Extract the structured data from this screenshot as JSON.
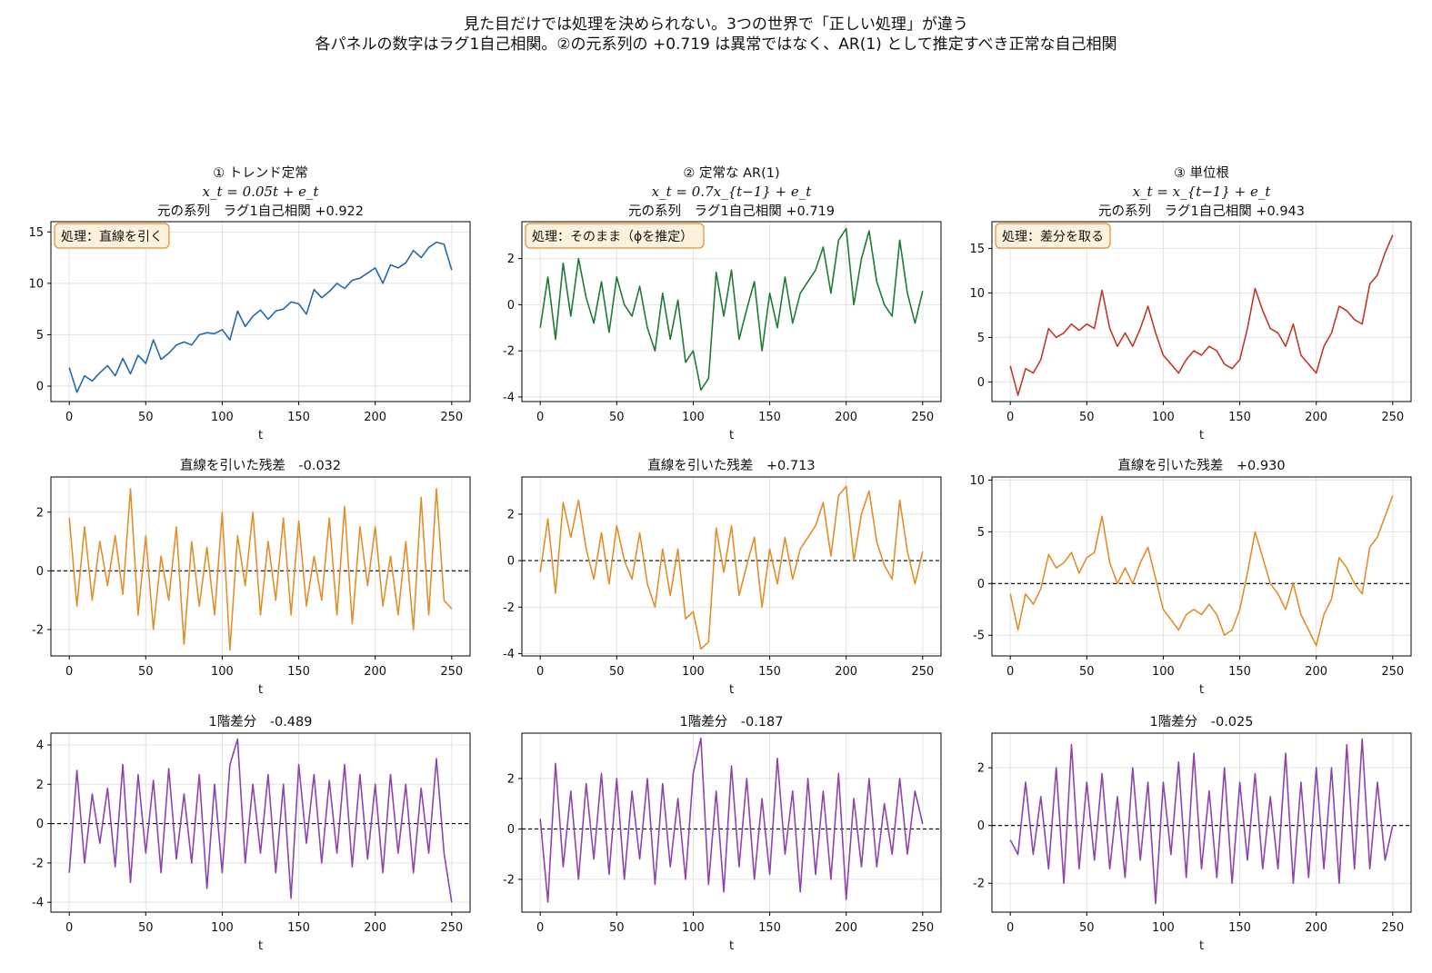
{
  "suptitle": {
    "line1": "見た目だけでは処理を決められない。3つの世界で「正しい処理」が違う",
    "line2": "各パネルの数字はラグ1自己相関。②の元系列の +0.719 は異常ではなく、AR(1) として推定すべき正常な自己相関"
  },
  "colors": {
    "trend": "#2369a8",
    "ar1": "#1e7b35",
    "unitroot": "#c0392b",
    "residual": "#e08f2c",
    "diff": "#8e44ad",
    "box_fill": "#fdf0dc",
    "box_edge": "#e08f2c",
    "grid": "#e3e3e3"
  },
  "chart_data": [
    {
      "type": "line",
      "panel": "row1-col1",
      "title_lines": [
        "① トレンド定常",
        "x_t = 0.05t + e_t",
        "元の系列　ラグ1自己相関 +0.922"
      ],
      "box": "処理：直線を引く",
      "xlabel": "t",
      "xlim": [
        -12,
        262
      ],
      "ylim": [
        -1.5,
        16
      ],
      "xticks": [
        0,
        50,
        100,
        150,
        200,
        250
      ],
      "yticks": [
        0,
        5,
        10,
        15
      ],
      "color_key": "trend",
      "zero_line": false,
      "x_start": 0,
      "x_step": 5,
      "values": [
        1.8,
        -0.6,
        1.0,
        0.5,
        1.3,
        2.0,
        1.0,
        2.7,
        1.2,
        3.0,
        2.2,
        4.5,
        2.6,
        3.2,
        4.0,
        4.3,
        4.0,
        5.0,
        5.2,
        5.1,
        5.5,
        4.5,
        7.3,
        5.8,
        6.8,
        7.4,
        6.5,
        7.3,
        7.5,
        8.2,
        8.0,
        7.0,
        9.4,
        8.6,
        9.2,
        10.0,
        9.5,
        10.3,
        10.5,
        11.0,
        11.5,
        10.0,
        11.8,
        11.5,
        12.0,
        13.2,
        12.5,
        13.5,
        14.0,
        13.8,
        11.3
      ]
    },
    {
      "type": "line",
      "panel": "row1-col2",
      "title_lines": [
        "② 定常な AR(1)",
        "x_t = 0.7x_{t−1} + e_t",
        "元の系列　ラグ1自己相関 +0.719"
      ],
      "box": "処理：そのまま（ϕを推定）",
      "xlabel": "t",
      "xlim": [
        -12,
        262
      ],
      "ylim": [
        -4.2,
        3.6
      ],
      "xticks": [
        0,
        50,
        100,
        150,
        200,
        250
      ],
      "yticks": [
        -4,
        -2,
        0,
        2
      ],
      "color_key": "ar1",
      "zero_line": false,
      "x_start": 0,
      "x_step": 5,
      "values": [
        -1.0,
        1.2,
        -1.5,
        1.8,
        -0.5,
        2.0,
        0.3,
        -0.8,
        1.0,
        -1.2,
        1.2,
        0.0,
        -0.5,
        0.8,
        -1.0,
        -2.0,
        0.5,
        -1.5,
        0.2,
        -2.5,
        -2.0,
        -3.7,
        -3.2,
        1.4,
        -0.5,
        1.5,
        -1.5,
        -0.2,
        1.0,
        -2.0,
        0.5,
        -1.0,
        1.2,
        -0.8,
        0.5,
        1.0,
        1.5,
        2.5,
        0.5,
        2.8,
        3.3,
        0.0,
        2.0,
        3.2,
        1.0,
        0.0,
        -0.5,
        2.8,
        0.5,
        -0.8,
        0.6
      ]
    },
    {
      "type": "line",
      "panel": "row1-col3",
      "title_lines": [
        "③ 単位根",
        "x_t = x_{t−1} + e_t",
        "元の系列　ラグ1自己相関 +0.943"
      ],
      "box": "処理：差分を取る",
      "xlabel": "t",
      "xlim": [
        -12,
        262
      ],
      "ylim": [
        -2.2,
        18
      ],
      "xticks": [
        0,
        50,
        100,
        150,
        200,
        250
      ],
      "yticks": [
        0,
        5,
        10,
        15
      ],
      "color_key": "unitroot",
      "zero_line": false,
      "x_start": 0,
      "x_step": 5,
      "values": [
        1.8,
        -1.5,
        1.5,
        1.0,
        2.5,
        6.0,
        5.0,
        5.5,
        6.5,
        5.8,
        6.5,
        6.0,
        10.3,
        6.0,
        4.0,
        5.5,
        4.0,
        6.0,
        8.5,
        5.5,
        3.0,
        2.0,
        1.0,
        2.5,
        3.5,
        3.0,
        4.0,
        3.5,
        2.0,
        1.5,
        2.5,
        6.0,
        10.5,
        8.0,
        6.0,
        5.5,
        4.0,
        6.5,
        3.0,
        2.0,
        1.0,
        4.0,
        5.5,
        8.5,
        8.0,
        7.0,
        6.5,
        11.0,
        12.0,
        14.5,
        16.5
      ]
    },
    {
      "type": "line",
      "panel": "row2-col1",
      "title": "直線を引いた残差　-0.032",
      "xlabel": "t",
      "xlim": [
        -12,
        262
      ],
      "ylim": [
        -2.9,
        3.2
      ],
      "xticks": [
        0,
        50,
        100,
        150,
        200,
        250
      ],
      "yticks": [
        -2,
        0,
        2
      ],
      "color_key": "residual",
      "zero_line": true,
      "x_start": 0,
      "x_step": 5,
      "values": [
        1.8,
        -1.2,
        1.5,
        -1.0,
        1.0,
        -0.5,
        1.2,
        -0.8,
        2.8,
        -1.5,
        1.2,
        -2.0,
        0.5,
        -1.0,
        1.5,
        -2.5,
        1.0,
        -1.2,
        0.8,
        -1.5,
        2.0,
        -2.7,
        1.2,
        -0.5,
        2.0,
        -1.5,
        1.0,
        -1.0,
        1.8,
        -1.5,
        1.7,
        -1.2,
        0.5,
        -1.0,
        1.8,
        -1.5,
        2.2,
        -1.8,
        1.5,
        -0.5,
        1.5,
        -1.2,
        0.5,
        -1.5,
        1.0,
        -2.0,
        2.5,
        -1.5,
        2.8,
        -1.0,
        -1.3
      ]
    },
    {
      "type": "line",
      "panel": "row2-col2",
      "title": "直線を引いた残差　+0.713",
      "xlabel": "t",
      "xlim": [
        -12,
        262
      ],
      "ylim": [
        -4.1,
        3.6
      ],
      "xticks": [
        0,
        50,
        100,
        150,
        200,
        250
      ],
      "yticks": [
        -4,
        -2,
        0,
        2
      ],
      "color_key": "residual",
      "zero_line": true,
      "x_start": 0,
      "x_step": 5,
      "values": [
        -0.5,
        1.8,
        -1.4,
        2.5,
        1.0,
        2.6,
        0.5,
        -0.8,
        1.2,
        -1.0,
        1.5,
        0.0,
        -0.8,
        1.2,
        -1.0,
        -2.0,
        0.5,
        -1.5,
        0.5,
        -2.5,
        -2.2,
        -3.8,
        -3.5,
        1.4,
        -0.5,
        1.5,
        -1.5,
        -0.2,
        1.0,
        -2.0,
        0.5,
        -1.0,
        1.0,
        -0.8,
        0.5,
        1.0,
        1.5,
        2.5,
        0.2,
        2.8,
        3.2,
        0.0,
        2.0,
        3.0,
        0.8,
        -0.2,
        -0.8,
        2.6,
        0.4,
        -1.0,
        0.4
      ]
    },
    {
      "type": "line",
      "panel": "row2-col3",
      "title": "直線を引いた残差　+0.930",
      "xlabel": "t",
      "xlim": [
        -12,
        262
      ],
      "ylim": [
        -7.0,
        10.3
      ],
      "xticks": [
        0,
        50,
        100,
        150,
        200,
        250
      ],
      "yticks": [
        -5,
        0,
        5,
        10
      ],
      "color_key": "residual",
      "zero_line": true,
      "x_start": 0,
      "x_step": 5,
      "values": [
        -1.0,
        -4.5,
        -1.0,
        -2.0,
        -0.5,
        2.8,
        1.5,
        2.0,
        3.0,
        1.0,
        2.5,
        3.0,
        6.5,
        2.0,
        0.0,
        1.5,
        0.0,
        2.0,
        3.5,
        0.5,
        -2.5,
        -3.5,
        -4.5,
        -3.0,
        -2.5,
        -3.0,
        -2.0,
        -3.0,
        -5.0,
        -4.5,
        -2.5,
        1.0,
        5.0,
        2.5,
        0.0,
        -1.0,
        -2.5,
        0.0,
        -3.0,
        -4.5,
        -6.0,
        -3.0,
        -1.5,
        2.5,
        1.5,
        0.0,
        -1.0,
        3.5,
        4.5,
        6.5,
        8.5
      ]
    },
    {
      "type": "line",
      "panel": "row3-col1",
      "title": "1階差分　-0.489",
      "xlabel": "t",
      "xlim": [
        -12,
        262
      ],
      "ylim": [
        -4.5,
        4.6
      ],
      "xticks": [
        0,
        50,
        100,
        150,
        200,
        250
      ],
      "yticks": [
        -4,
        -2,
        0,
        2,
        4
      ],
      "color_key": "diff",
      "zero_line": true,
      "x_start": 0,
      "x_step": 5,
      "values": [
        -2.5,
        2.7,
        -2.0,
        1.5,
        -1.0,
        1.8,
        -2.2,
        3.0,
        -3.0,
        2.5,
        -1.5,
        2.2,
        -2.5,
        2.8,
        -1.8,
        1.5,
        -2.0,
        2.5,
        -3.3,
        2.0,
        -2.5,
        3.0,
        4.3,
        -2.0,
        2.0,
        -1.5,
        2.5,
        -2.5,
        2.0,
        -3.8,
        3.0,
        -1.0,
        2.5,
        -2.0,
        2.2,
        -1.5,
        3.0,
        -2.2,
        2.5,
        -1.8,
        2.0,
        -2.5,
        2.5,
        -1.5,
        2.0,
        -2.5,
        1.8,
        -1.5,
        3.3,
        -1.5,
        -4.0
      ]
    },
    {
      "type": "line",
      "panel": "row3-col2",
      "title": "1階差分　-0.187",
      "xlabel": "t",
      "xlim": [
        -12,
        262
      ],
      "ylim": [
        -3.3,
        3.8
      ],
      "xticks": [
        0,
        50,
        100,
        150,
        200,
        250
      ],
      "yticks": [
        -2,
        0,
        2
      ],
      "color_key": "diff",
      "zero_line": true,
      "x_start": 0,
      "x_step": 5,
      "values": [
        0.4,
        -2.9,
        2.6,
        -1.5,
        1.5,
        -2.0,
        1.8,
        -1.2,
        2.2,
        -1.8,
        2.0,
        -2.0,
        1.5,
        -1.2,
        2.0,
        -2.2,
        1.8,
        -1.5,
        1.2,
        -2.0,
        2.2,
        3.6,
        -2.2,
        1.5,
        -2.5,
        2.5,
        -1.5,
        2.0,
        -2.0,
        1.2,
        -1.8,
        2.8,
        -1.0,
        1.5,
        -2.5,
        2.0,
        -1.8,
        1.5,
        -2.0,
        2.2,
        -2.8,
        1.2,
        -1.5,
        2.0,
        -1.5,
        1.0,
        -1.0,
        2.0,
        -1.0,
        1.5,
        0.2
      ]
    },
    {
      "type": "line",
      "panel": "row3-col3",
      "title": "1階差分　-0.025",
      "xlabel": "t",
      "xlim": [
        -12,
        262
      ],
      "ylim": [
        -3.0,
        3.2
      ],
      "xticks": [
        0,
        50,
        100,
        150,
        200,
        250
      ],
      "yticks": [
        -2,
        0,
        2
      ],
      "color_key": "diff",
      "zero_line": true,
      "x_start": 0,
      "x_step": 5,
      "values": [
        -0.5,
        -1.0,
        1.5,
        -1.0,
        1.0,
        -1.5,
        2.0,
        -2.0,
        2.8,
        -1.5,
        1.5,
        -1.2,
        1.8,
        -1.5,
        1.0,
        -1.8,
        2.0,
        -1.2,
        1.5,
        -2.7,
        1.5,
        -1.0,
        2.2,
        -1.8,
        2.5,
        -1.5,
        1.2,
        -1.8,
        2.0,
        -2.0,
        1.5,
        -1.2,
        1.8,
        -1.5,
        1.0,
        -1.5,
        2.5,
        -2.0,
        1.5,
        -1.8,
        2.0,
        -1.5,
        2.0,
        -2.0,
        2.8,
        -1.5,
        3.0,
        -1.5,
        1.5,
        -1.2,
        0.0
      ]
    }
  ]
}
